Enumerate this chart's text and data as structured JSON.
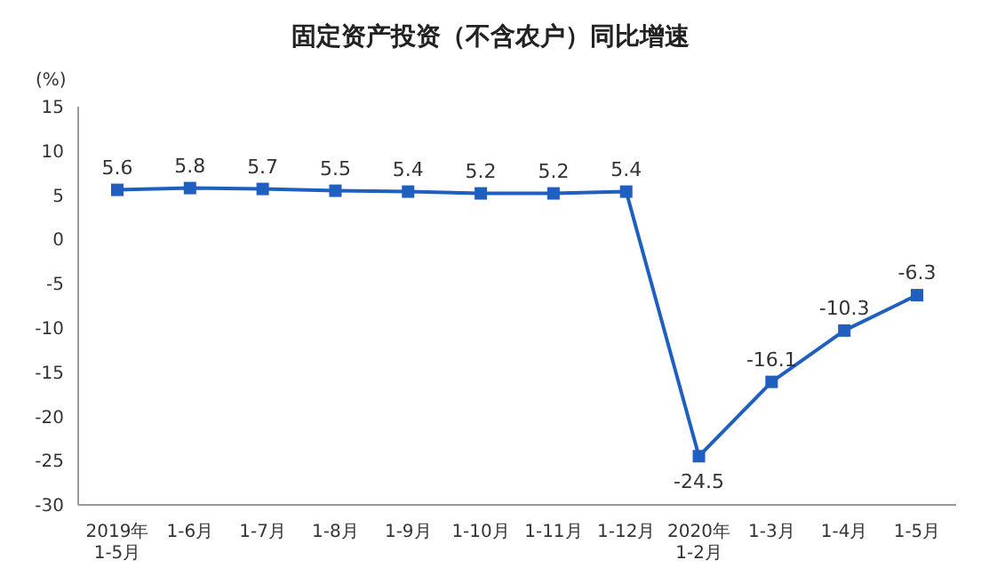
{
  "chart_data": {
    "type": "line",
    "title": "固定资产投资（不含农户）同比增速",
    "ylabel": "(%)",
    "categories": [
      "2019年\n1-5月",
      "1-6月",
      "1-7月",
      "1-8月",
      "1-9月",
      "1-10月",
      "1-11月",
      "1-12月",
      "2020年\n1-2月",
      "1-3月",
      "1-4月",
      "1-5月"
    ],
    "series": [
      {
        "color": "#1f5fbf",
        "values": [
          5.6,
          5.8,
          5.7,
          5.5,
          5.4,
          5.2,
          5.2,
          5.4,
          -24.5,
          -16.1,
          -10.3,
          -6.3
        ]
      }
    ],
    "ylim": [
      -30,
      15
    ],
    "yticks": [
      -30,
      -25,
      -20,
      -15,
      -10,
      -5,
      0,
      5,
      10,
      15
    ],
    "grid": false,
    "legend": false,
    "marker": "square",
    "line_style": "solid",
    "data_labels": true
  }
}
